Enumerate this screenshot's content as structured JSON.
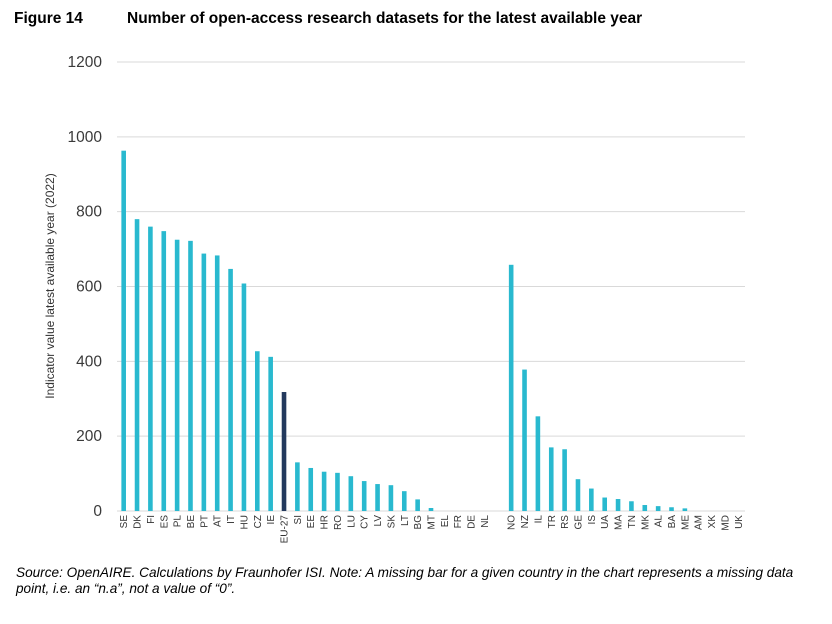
{
  "figure": {
    "label": "Figure 14",
    "title": "Number of open-access research datasets for the latest available year"
  },
  "source_note": "Source: OpenAIRE. Calculations by Fraunhofer ISI. Note: A missing bar for a given country in the chart represents a missing data point, i.e. an “n.a”, not a value of “0”.",
  "colors": {
    "bar": "#29b9cf",
    "highlight": "#23395d",
    "grid": "#d9d9d9"
  },
  "chart_data": {
    "type": "bar",
    "ylabel": "Indicator value latest available year (2022)",
    "xlabel": "",
    "ylim": [
      0,
      1200
    ],
    "yticks": [
      0,
      200,
      400,
      600,
      800,
      1000,
      1200
    ],
    "grid": true,
    "legend": "none",
    "highlight_category": "EU-27",
    "categories": [
      "SE",
      "DK",
      "FI",
      "ES",
      "PL",
      "BE",
      "PT",
      "AT",
      "IT",
      "HU",
      "CZ",
      "IE",
      "EU-27",
      "SI",
      "EE",
      "HR",
      "RO",
      "LU",
      "CY",
      "LV",
      "SK",
      "LT",
      "BG",
      "MT",
      "EL",
      "FR",
      "DE",
      "NL",
      "",
      "NO",
      "NZ",
      "IL",
      "TR",
      "RS",
      "GE",
      "IS",
      "UA",
      "MA",
      "TN",
      "MK",
      "AL",
      "BA",
      "ME",
      "AM",
      "XK",
      "MD",
      "UK"
    ],
    "values": [
      963,
      780,
      760,
      748,
      725,
      722,
      688,
      683,
      647,
      608,
      427,
      412,
      318,
      130,
      115,
      105,
      102,
      93,
      80,
      72,
      69,
      53,
      31,
      8,
      null,
      null,
      null,
      null,
      null,
      658,
      378,
      253,
      170,
      165,
      85,
      60,
      36,
      32,
      26,
      16,
      13,
      10,
      7,
      null,
      null,
      null,
      null
    ]
  }
}
